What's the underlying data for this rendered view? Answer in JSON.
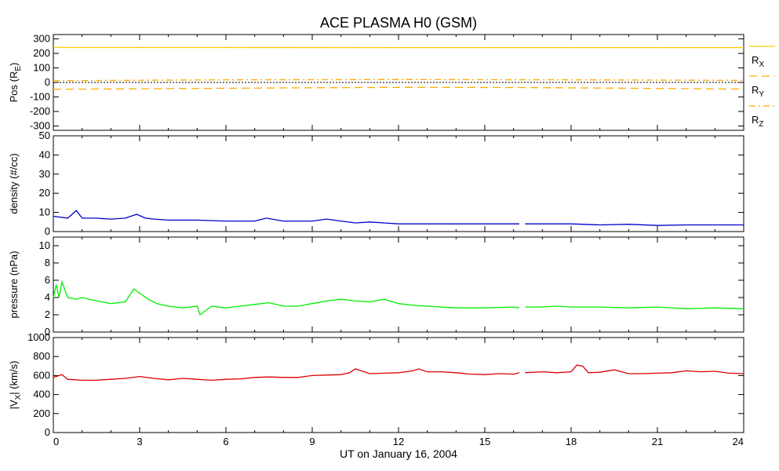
{
  "chart_data": [
    {
      "type": "line",
      "ylabel": "Pos (R",
      "ylabel_sub": "E",
      "ylabel_end": ")",
      "ylim": [
        -330,
        330
      ],
      "yticks": [
        -300,
        -200,
        -100,
        0,
        100,
        200,
        300
      ],
      "ytick_labels": [
        "-300",
        "-200",
        "-100",
        "0",
        "100",
        "200",
        "300"
      ],
      "zero_line": true,
      "series": [
        {
          "name": "R",
          "sub": "X",
          "color": "#ffcc00",
          "dash": "solid",
          "x": [
            0,
            6,
            12,
            18,
            24
          ],
          "y": [
            241,
            241,
            240,
            240,
            240
          ]
        },
        {
          "name": "R",
          "sub": "Y",
          "color": "#ffaa00",
          "dash": "dashed",
          "x": [
            0,
            4,
            8,
            12,
            16,
            20,
            24
          ],
          "y": [
            -47,
            -43,
            -38,
            -34,
            -35,
            -40,
            -46
          ]
        },
        {
          "name": "R",
          "sub": "Z",
          "color": "#ffaa00",
          "dash": "dashdot",
          "x": [
            0,
            6,
            12,
            18,
            24
          ],
          "y": [
            12,
            18,
            20,
            18,
            14
          ]
        }
      ]
    },
    {
      "type": "line",
      "ylabel": "density (#/cc)",
      "ylim": [
        0,
        50
      ],
      "yticks": [
        0,
        10,
        20,
        30,
        40,
        50
      ],
      "ytick_labels": [
        "0",
        "10",
        "20",
        "30",
        "40",
        "50"
      ],
      "series": [
        {
          "color": "#0000cc",
          "segments": [
            {
              "x": [
                0,
                0.5,
                0.8,
                1,
                1.5,
                2,
                2.5,
                2.9,
                3.2,
                3.5,
                4,
                5,
                6,
                7,
                7.4,
                8,
                9,
                9.5,
                10,
                10.5,
                11,
                11.5,
                12,
                13,
                14,
                15,
                16,
                16.2
              ],
              "y": [
                8,
                7,
                11,
                7,
                7,
                6.5,
                7,
                9,
                7,
                6.5,
                6,
                6,
                5.5,
                5.5,
                7,
                5.5,
                5.5,
                6.5,
                5.5,
                4.5,
                5,
                4.5,
                4,
                4,
                4,
                4,
                4,
                4
              ]
            },
            {
              "x": [
                16.4,
                17,
                18,
                19,
                20,
                21,
                22,
                23,
                24
              ],
              "y": [
                4,
                4,
                4,
                3.5,
                3.8,
                3.2,
                3.5,
                3.5,
                3.5
              ]
            }
          ]
        }
      ]
    },
    {
      "type": "line",
      "ylabel": "pressure (nPa)",
      "ylim": [
        0,
        11
      ],
      "yticks": [
        0,
        2,
        4,
        6,
        8,
        10
      ],
      "ytick_labels": [
        "0",
        "2",
        "4",
        "6",
        "8",
        "10"
      ],
      "series": [
        {
          "color": "#00ee00",
          "segments": [
            {
              "x": [
                0,
                0.1,
                0.2,
                0.3,
                0.5,
                0.8,
                1,
                1.5,
                2,
                2.5,
                2.8,
                3,
                3.3,
                3.6,
                4,
                4.5,
                5,
                5.1,
                5.5,
                6,
                6.5,
                7,
                7.5,
                8,
                8.5,
                9,
                9.5,
                10,
                10.5,
                11,
                11.5,
                12,
                12.5,
                13,
                14,
                15,
                16,
                16.2
              ],
              "y": [
                4,
                5.5,
                4,
                5.8,
                4,
                3.8,
                4,
                3.6,
                3.3,
                3.5,
                5,
                4.5,
                3.8,
                3.3,
                3,
                2.8,
                3,
                2,
                3,
                2.8,
                3,
                3.2,
                3.4,
                3,
                3,
                3.3,
                3.6,
                3.8,
                3.6,
                3.5,
                3.8,
                3.3,
                3.1,
                3,
                2.8,
                2.8,
                2.9,
                2.8
              ]
            },
            {
              "x": [
                16.4,
                17,
                17.5,
                18,
                19,
                20,
                21,
                22,
                23,
                24
              ],
              "y": [
                2.9,
                2.9,
                3,
                2.9,
                2.9,
                2.8,
                2.9,
                2.7,
                2.8,
                2.7
              ]
            }
          ]
        }
      ]
    },
    {
      "type": "line",
      "ylabel": "|V",
      "ylabel_sub": "X",
      "ylabel_end": "| (km/s)",
      "ylim": [
        0,
        1000
      ],
      "yticks": [
        0,
        200,
        400,
        600,
        800,
        1000
      ],
      "ytick_labels": [
        "0",
        "200",
        "400",
        "600",
        "800",
        "1000"
      ],
      "series": [
        {
          "color": "#dd0000",
          "segments": [
            {
              "x": [
                0,
                0.3,
                0.5,
                1,
                1.5,
                2,
                2.5,
                3,
                3.5,
                4,
                4.5,
                5,
                5.5,
                6,
                6.5,
                7,
                7.5,
                8,
                8.5,
                9,
                9.5,
                10,
                10.3,
                10.5,
                11,
                11.5,
                12,
                12.5,
                12.7,
                13,
                13.5,
                14,
                14.5,
                15,
                15.5,
                16,
                16.2
              ],
              "y": [
                580,
                610,
                560,
                550,
                550,
                560,
                570,
                590,
                570,
                555,
                570,
                560,
                550,
                560,
                565,
                580,
                585,
                580,
                580,
                600,
                605,
                610,
                630,
                670,
                620,
                625,
                630,
                650,
                670,
                640,
                640,
                630,
                615,
                610,
                620,
                615,
                630
              ]
            },
            {
              "x": [
                16.4,
                17,
                17.5,
                18,
                18.2,
                18.4,
                18.6,
                19,
                19.5,
                20,
                20.5,
                21,
                21.5,
                22,
                22.5,
                23,
                23.5,
                24
              ],
              "y": [
                630,
                640,
                630,
                640,
                710,
                700,
                630,
                635,
                660,
                620,
                620,
                625,
                630,
                650,
                640,
                645,
                625,
                620
              ]
            }
          ]
        }
      ]
    }
  ],
  "title": "ACE PLASMA H0 (GSM)",
  "xlabel": "UT on January 16, 2004",
  "xlim": [
    0,
    24
  ],
  "xticks": [
    0,
    3,
    6,
    9,
    12,
    15,
    18,
    21,
    24
  ],
  "xtick_labels": [
    "0",
    "3",
    "6",
    "9",
    "12",
    "15",
    "18",
    "21",
    "24"
  ]
}
